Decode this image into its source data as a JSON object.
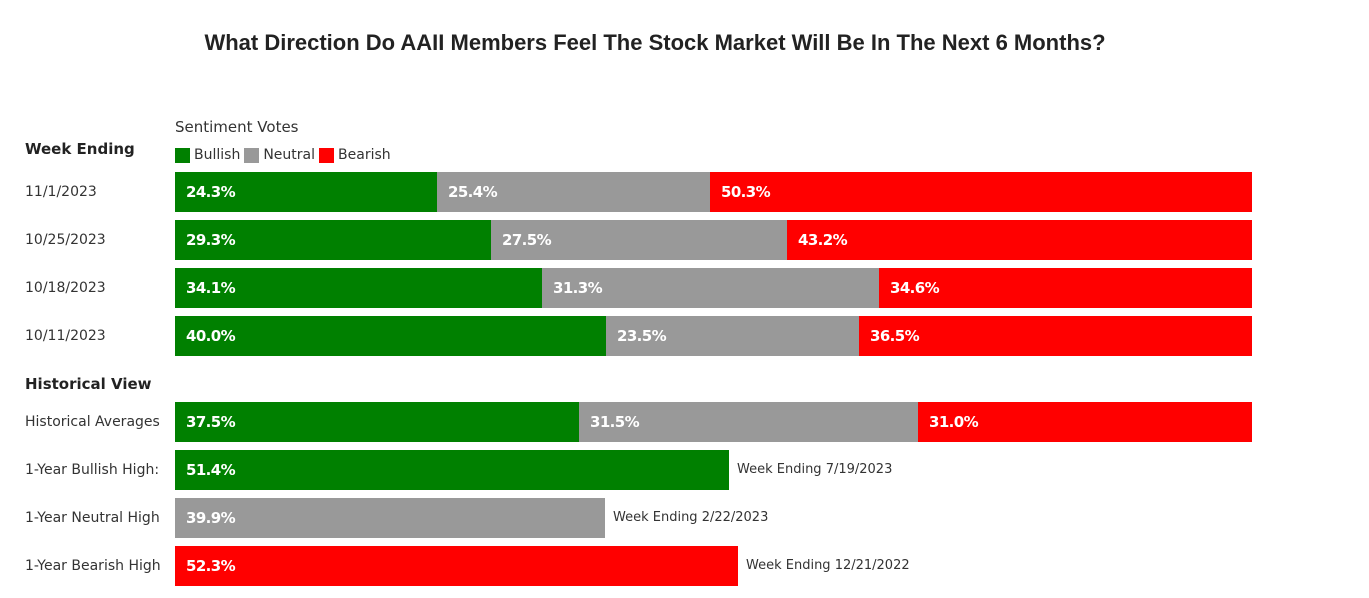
{
  "chart_data": {
    "type": "bar",
    "stacked": true,
    "orientation": "horizontal",
    "title": "What Direction Do AAII Members Feel The Stock Market Will Be In The Next 6 Months?",
    "legend_title": "Sentiment Votes",
    "legend_position": "top-left",
    "series_names": [
      "Bullish",
      "Neutral",
      "Bearish"
    ],
    "colors": {
      "Bullish": "#008000",
      "Neutral": "#999999",
      "Bearish": "#ff0000"
    },
    "section_weekly": "Week Ending",
    "section_historical": "Historical View",
    "weekly": [
      {
        "label": "11/1/2023",
        "values": [
          24.3,
          25.4,
          50.3
        ],
        "texts": [
          "24.3%",
          "25.4%",
          "50.3%"
        ]
      },
      {
        "label": "10/25/2023",
        "values": [
          29.3,
          27.5,
          43.2
        ],
        "texts": [
          "29.3%",
          "27.5%",
          "43.2%"
        ]
      },
      {
        "label": "10/18/2023",
        "values": [
          34.1,
          31.3,
          34.6
        ],
        "texts": [
          "34.1%",
          "31.3%",
          "34.6%"
        ]
      },
      {
        "label": "10/11/2023",
        "values": [
          40.0,
          23.5,
          36.5
        ],
        "texts": [
          "40.0%",
          "23.5%",
          "36.5%"
        ]
      }
    ],
    "historical": [
      {
        "label": "Historical Averages",
        "values": [
          37.5,
          31.5,
          31.0
        ],
        "texts": [
          "37.5%",
          "31.5%",
          "31.0%"
        ]
      }
    ],
    "highs": [
      {
        "label": "1-Year Bullish High:",
        "series": "Bullish",
        "value": 51.4,
        "text": "51.4%",
        "note": "Week Ending 7/19/2023"
      },
      {
        "label": "1-Year Neutral High",
        "series": "Neutral",
        "value": 39.9,
        "text": "39.9%",
        "note": "Week Ending 2/22/2023"
      },
      {
        "label": "1-Year Bearish High",
        "series": "Bearish",
        "value": 52.3,
        "text": "52.3%",
        "note": "Week Ending 12/21/2022"
      }
    ]
  }
}
